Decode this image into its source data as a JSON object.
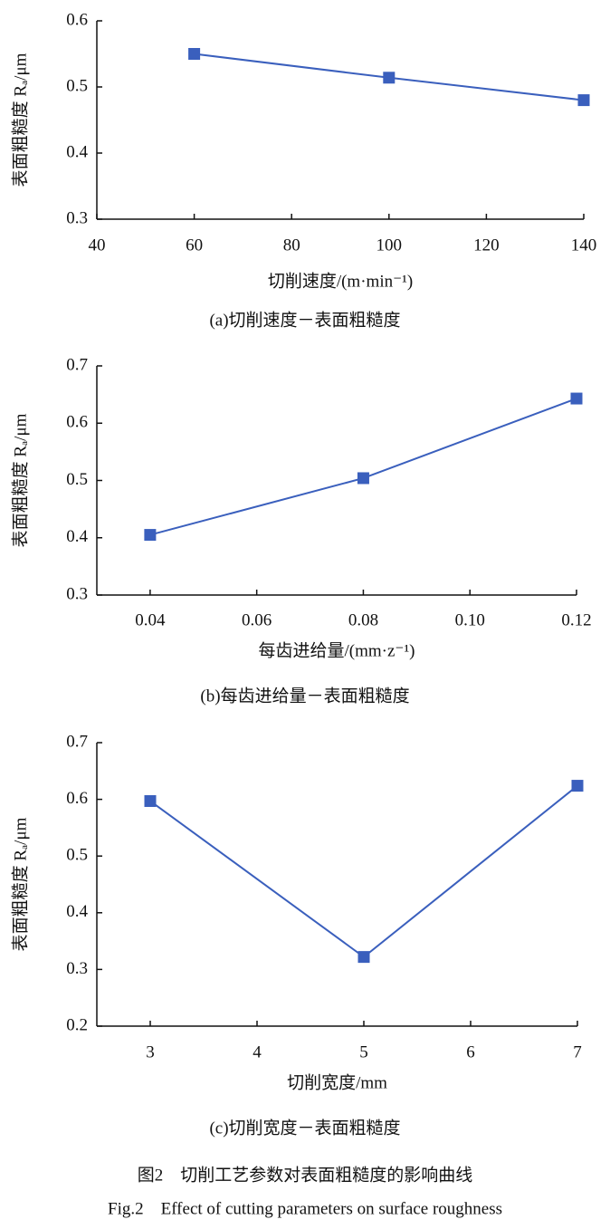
{
  "chart_data": [
    {
      "type": "line",
      "x": [
        60,
        100,
        140
      ],
      "series": [
        {
          "name": "表面粗糙度",
          "color": "#3a5fbd",
          "values": [
            0.55,
            0.514,
            0.48
          ]
        }
      ],
      "xlim": [
        40,
        140
      ],
      "xticks": [
        40,
        60,
        80,
        100,
        120,
        140
      ],
      "ylim": [
        0.3,
        0.6
      ],
      "yticks": [
        0.3,
        0.4,
        0.5,
        0.6
      ],
      "xlabel": "切削速度/(m·min⁻¹)",
      "ylabel": "表面粗糙度 Rₐ/μm",
      "caption": "(a)切削速度－表面粗糙度"
    },
    {
      "type": "line",
      "x": [
        0.04,
        0.08,
        0.12
      ],
      "series": [
        {
          "name": "表面粗糙度",
          "color": "#3a5fbd",
          "values": [
            0.405,
            0.504,
            0.643
          ]
        }
      ],
      "xlim": [
        0.03,
        0.12
      ],
      "xticks": [
        0.04,
        0.06,
        0.08,
        {
          "value": 0.1,
          "label": "0.10"
        },
        0.12
      ],
      "ylim": [
        0.3,
        0.7
      ],
      "yticks": [
        0.3,
        0.4,
        0.5,
        0.6,
        0.7
      ],
      "xlabel": "每齿进给量/(mm·z⁻¹)",
      "ylabel": "表面粗糙度 Rₐ/μm",
      "caption": "(b)每齿进给量－表面粗糙度"
    },
    {
      "type": "line",
      "x": [
        3,
        5,
        7
      ],
      "series": [
        {
          "name": "表面粗糙度",
          "color": "#3a5fbd",
          "values": [
            0.597,
            0.322,
            0.624
          ]
        }
      ],
      "xlim": [
        2.5,
        7
      ],
      "xticks": [
        3,
        4,
        5,
        6,
        7
      ],
      "ylim": [
        0.2,
        0.7
      ],
      "yticks": [
        0.2,
        0.3,
        0.4,
        0.5,
        0.6,
        0.7
      ],
      "xlabel": "切削宽度/mm",
      "ylabel": "表面粗糙度 Rₐ/μm",
      "caption": "(c)切削宽度－表面粗糙度"
    }
  ],
  "figure": {
    "title": "图2　切削工艺参数对表面粗糙度的影响曲线",
    "title_en": "Fig.2　Effect of cutting parameters on surface roughness"
  }
}
